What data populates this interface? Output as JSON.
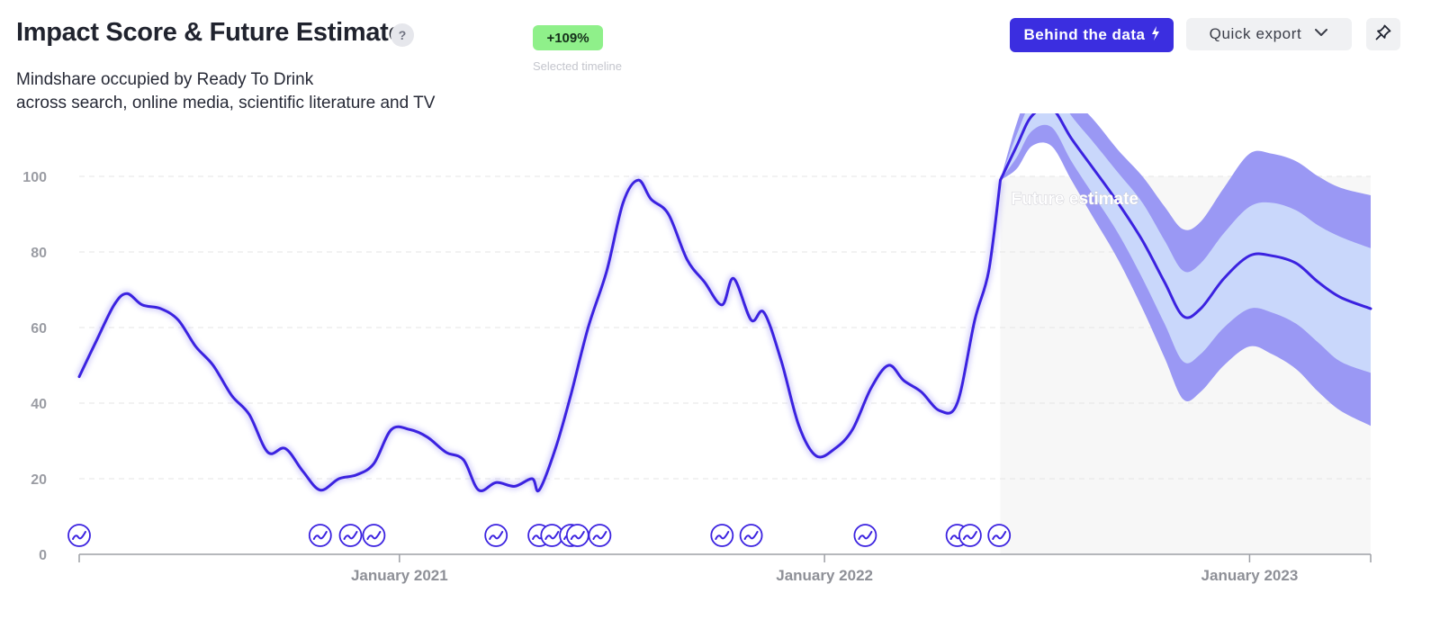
{
  "header": {
    "title": "Impact Score & Future Estimate",
    "help_label": "?",
    "subtitle_line1": "Mindshare occupied by Ready To Drink",
    "subtitle_line2": "across search, online media, scientific literature and TV",
    "change_badge": "+109%",
    "change_caption": "Selected timeline"
  },
  "toolbar": {
    "behind_the_data_label": "Behind the data",
    "behind_the_data_icon": "lightning-icon",
    "quick_export_label": "Quick export",
    "quick_export_icon": "chevron-down-icon",
    "pin_icon": "pin-icon"
  },
  "colors": {
    "line": "#3b22e0",
    "band_outer": "#9a98f4",
    "band_inner": "#c9d7fb",
    "forecast_bg": "#f7f7f7",
    "badge": "#8ff08a"
  },
  "chart_data": {
    "type": "line",
    "title": "Impact Score & Future Estimate",
    "xlabel": "",
    "ylabel": "",
    "ylim": [
      0,
      110
    ],
    "yticks": [
      0,
      20,
      40,
      60,
      80,
      100
    ],
    "grid": true,
    "x_range": [
      "2020-04-01",
      "2023-04-15"
    ],
    "xticks": [
      {
        "date": "2021-01-01",
        "label": "January 2021"
      },
      {
        "date": "2022-01-01",
        "label": "January 2022"
      },
      {
        "date": "2023-01-01",
        "label": "January 2023"
      }
    ],
    "forecast_start": "2022-06-01",
    "forecast_label": "Future estimate",
    "series": [
      {
        "name": "",
        "points": [
          [
            "2020-04-01",
            47
          ],
          [
            "2020-04-15",
            56
          ],
          [
            "2020-05-01",
            66
          ],
          [
            "2020-05-12",
            69
          ],
          [
            "2020-05-25",
            66
          ],
          [
            "2020-06-10",
            65
          ],
          [
            "2020-06-25",
            62
          ],
          [
            "2020-07-10",
            55
          ],
          [
            "2020-07-25",
            50
          ],
          [
            "2020-08-10",
            42
          ],
          [
            "2020-08-25",
            37
          ],
          [
            "2020-09-10",
            27
          ],
          [
            "2020-09-25",
            28
          ],
          [
            "2020-10-10",
            22
          ],
          [
            "2020-10-25",
            17
          ],
          [
            "2020-11-10",
            20
          ],
          [
            "2020-11-25",
            21
          ],
          [
            "2020-12-10",
            24
          ],
          [
            "2020-12-25",
            33
          ],
          [
            "2021-01-10",
            33
          ],
          [
            "2021-01-25",
            31
          ],
          [
            "2021-02-10",
            27
          ],
          [
            "2021-02-25",
            25
          ],
          [
            "2021-03-10",
            17
          ],
          [
            "2021-03-25",
            19
          ],
          [
            "2021-04-10",
            18
          ],
          [
            "2021-04-25",
            20
          ],
          [
            "2021-05-01",
            17
          ],
          [
            "2021-05-15",
            28
          ],
          [
            "2021-05-28",
            42
          ],
          [
            "2021-06-12",
            60
          ],
          [
            "2021-06-28",
            75
          ],
          [
            "2021-07-12",
            93
          ],
          [
            "2021-07-25",
            99
          ],
          [
            "2021-08-05",
            94
          ],
          [
            "2021-08-20",
            90
          ],
          [
            "2021-09-05",
            78
          ],
          [
            "2021-09-20",
            72
          ],
          [
            "2021-10-05",
            66
          ],
          [
            "2021-10-15",
            73
          ],
          [
            "2021-10-30",
            62
          ],
          [
            "2021-11-10",
            64
          ],
          [
            "2021-11-25",
            51
          ],
          [
            "2021-12-10",
            34
          ],
          [
            "2021-12-25",
            26
          ],
          [
            "2022-01-10",
            28
          ],
          [
            "2022-01-25",
            33
          ],
          [
            "2022-02-10",
            44
          ],
          [
            "2022-02-25",
            50
          ],
          [
            "2022-03-10",
            46
          ],
          [
            "2022-03-25",
            43
          ],
          [
            "2022-04-10",
            38
          ],
          [
            "2022-04-25",
            40
          ],
          [
            "2022-05-10",
            62
          ],
          [
            "2022-05-22",
            75
          ],
          [
            "2022-06-01",
            99
          ]
        ]
      },
      {
        "name": "Future estimate",
        "points": [
          [
            "2022-06-01",
            99
          ],
          [
            "2022-06-15",
            108
          ],
          [
            "2022-06-28",
            116
          ],
          [
            "2022-07-15",
            118
          ],
          [
            "2022-08-01",
            110
          ],
          [
            "2022-08-20",
            102
          ],
          [
            "2022-09-10",
            93
          ],
          [
            "2022-10-01",
            83
          ],
          [
            "2022-10-20",
            72
          ],
          [
            "2022-11-05",
            63
          ],
          [
            "2022-11-20",
            65
          ],
          [
            "2022-12-10",
            73
          ],
          [
            "2023-01-01",
            79
          ],
          [
            "2023-01-20",
            79
          ],
          [
            "2023-02-10",
            77
          ],
          [
            "2023-03-01",
            72
          ],
          [
            "2023-03-20",
            68
          ],
          [
            "2023-04-15",
            65
          ]
        ],
        "band_inner": [
          [
            "2022-06-01",
            99,
            99
          ],
          [
            "2022-06-15",
            105,
            111
          ],
          [
            "2022-06-28",
            112,
            120
          ],
          [
            "2022-07-15",
            113,
            124
          ],
          [
            "2022-08-01",
            104,
            116
          ],
          [
            "2022-08-20",
            95,
            109
          ],
          [
            "2022-09-10",
            85,
            101
          ],
          [
            "2022-10-01",
            73,
            93
          ],
          [
            "2022-10-20",
            61,
            83
          ],
          [
            "2022-11-05",
            51,
            75
          ],
          [
            "2022-11-20",
            53,
            77
          ],
          [
            "2022-12-10",
            60,
            85
          ],
          [
            "2023-01-01",
            65,
            92
          ],
          [
            "2023-01-20",
            64,
            93
          ],
          [
            "2023-02-10",
            61,
            91
          ],
          [
            "2023-03-01",
            56,
            87
          ],
          [
            "2023-03-20",
            51,
            84
          ],
          [
            "2023-04-15",
            48,
            81
          ]
        ],
        "band_outer": [
          [
            "2022-06-01",
            99,
            99
          ],
          [
            "2022-06-15",
            102,
            114
          ],
          [
            "2022-06-28",
            108,
            124
          ],
          [
            "2022-07-15",
            108,
            128
          ],
          [
            "2022-08-01",
            99,
            121
          ],
          [
            "2022-08-20",
            89,
            115
          ],
          [
            "2022-09-10",
            78,
            107
          ],
          [
            "2022-10-01",
            65,
            100
          ],
          [
            "2022-10-20",
            52,
            92
          ],
          [
            "2022-11-05",
            41,
            86
          ],
          [
            "2022-11-20",
            43,
            88
          ],
          [
            "2022-12-10",
            50,
            97
          ],
          [
            "2023-01-01",
            55,
            106
          ],
          [
            "2023-01-20",
            53,
            106
          ],
          [
            "2023-02-10",
            49,
            104
          ],
          [
            "2023-03-01",
            43,
            100
          ],
          [
            "2023-03-20",
            38,
            97
          ],
          [
            "2023-04-15",
            34,
            95
          ]
        ]
      }
    ],
    "event_markers": [
      "2020-04-01",
      "2020-10-25",
      "2020-11-20",
      "2020-12-10",
      "2021-03-25",
      "2021-05-01",
      "2021-05-12",
      "2021-05-28",
      "2021-06-03",
      "2021-06-22",
      "2021-10-05",
      "2021-10-30",
      "2022-02-05",
      "2022-04-25",
      "2022-05-06",
      "2022-05-31"
    ],
    "event_marker_icon": "trend-up-icon"
  }
}
